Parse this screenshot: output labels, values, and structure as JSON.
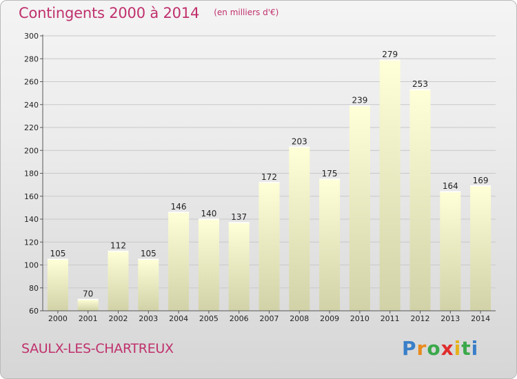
{
  "header": {
    "title": "Contingents 2000 à 2014",
    "subtitle": "(en milliers d'€)"
  },
  "footer": {
    "town": "SAULX-LES-CHARTREUX",
    "logo": {
      "text": "Proxiti",
      "letter_colors": [
        "#3a7fc8",
        "#e98a1c",
        "#3aa84a",
        "#e02c2c",
        "#e5b21a",
        "#3aa84a",
        "#3a7fc8"
      ]
    }
  },
  "colors": {
    "title": "#c0306c",
    "bar_top": "#ffffd8",
    "bar_bottom": "#d2d2a8"
  },
  "chart_data": {
    "type": "bar",
    "title": "Contingents 2000 à 2014",
    "subtitle": "(en milliers d'€)",
    "categories": [
      "2000",
      "2001",
      "2002",
      "2003",
      "2004",
      "2005",
      "2006",
      "2007",
      "2008",
      "2009",
      "2010",
      "2011",
      "2012",
      "2013",
      "2014"
    ],
    "values": [
      105,
      70,
      112,
      105,
      146,
      140,
      137,
      172,
      203,
      175,
      239,
      279,
      253,
      164,
      169
    ],
    "ylim": [
      60,
      300
    ],
    "yticks": [
      60,
      80,
      100,
      120,
      140,
      160,
      180,
      200,
      220,
      240,
      260,
      280,
      300
    ],
    "grid": true,
    "legend": "none"
  }
}
